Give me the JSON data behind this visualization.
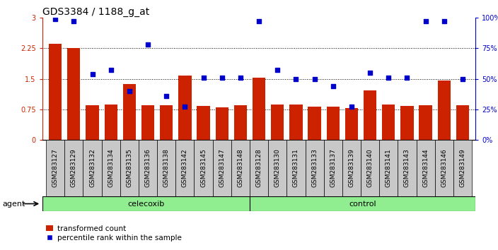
{
  "title": "GDS3384 / 1188_g_at",
  "categories": [
    "GSM283127",
    "GSM283129",
    "GSM283132",
    "GSM283134",
    "GSM283135",
    "GSM283136",
    "GSM283138",
    "GSM283142",
    "GSM283145",
    "GSM283147",
    "GSM283148",
    "GSM283128",
    "GSM283130",
    "GSM283131",
    "GSM283133",
    "GSM283137",
    "GSM283139",
    "GSM283140",
    "GSM283141",
    "GSM283143",
    "GSM283144",
    "GSM283146",
    "GSM283149"
  ],
  "bar_values": [
    2.35,
    2.25,
    0.85,
    0.87,
    1.37,
    0.85,
    0.85,
    1.58,
    0.83,
    0.8,
    0.85,
    1.52,
    0.87,
    0.87,
    0.82,
    0.82,
    0.78,
    1.22,
    0.87,
    0.84,
    0.85,
    1.46,
    0.85
  ],
  "scatter_pct": [
    99,
    97,
    54,
    57,
    40,
    78,
    36,
    27,
    51,
    51,
    51,
    97,
    57,
    50,
    50,
    44,
    27,
    55,
    51,
    51,
    97,
    97,
    50
  ],
  "bar_color": "#cc2200",
  "scatter_color": "#0000cc",
  "celecoxib_count": 11,
  "control_count": 12,
  "ylim_left": [
    0,
    3.0
  ],
  "ylim_right": [
    0,
    100
  ],
  "yticks_left": [
    0,
    0.75,
    1.5,
    2.25,
    3.0
  ],
  "ytick_labels_left": [
    "0",
    "0.75",
    "1.5",
    "2.25",
    "3"
  ],
  "yticks_right": [
    0,
    25,
    50,
    75,
    100
  ],
  "ytick_labels_right": [
    "0%",
    "25%",
    "50%",
    "75%",
    "100%"
  ],
  "hlines": [
    0.75,
    1.5,
    2.25
  ],
  "agent_label": "agent",
  "celecoxib_label": "celecoxib",
  "control_label": "control",
  "legend_bar": "transformed count",
  "legend_scatter": "percentile rank within the sample",
  "background_color": "#ffffff",
  "title_fontsize": 10,
  "tick_fontsize": 7,
  "bar_width": 0.7,
  "xtick_bg_color": "#c8c8c8",
  "agent_box_color": "#90ee90",
  "agent_area_color": "#c8c8c8"
}
